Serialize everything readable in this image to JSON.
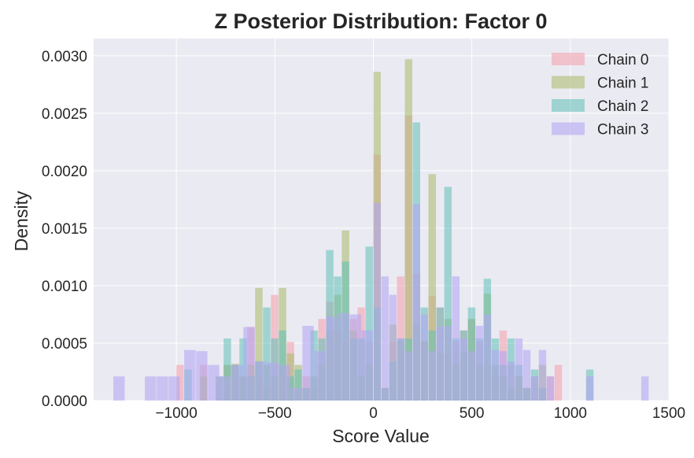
{
  "chart_data": {
    "type": "bar",
    "title": "Z Posterior Distribution: Factor 0",
    "xlabel": "Score Value",
    "ylabel": "Density",
    "xlim": [
      -1420,
      1500
    ],
    "ylim": [
      0,
      0.00315
    ],
    "xticks": [
      -1000,
      -500,
      0,
      500,
      1000,
      1500
    ],
    "xtick_labels": [
      "−1000",
      "−500",
      "0",
      "500",
      "1000",
      "1500"
    ],
    "yticks": [
      0,
      0.0005,
      0.001,
      0.0015,
      0.002,
      0.0025,
      0.003
    ],
    "ytick_labels": [
      "0.0000",
      "0.0005",
      "0.0010",
      "0.0015",
      "0.0020",
      "0.0025",
      "0.0030"
    ],
    "grid": true,
    "legend_position": "top-right",
    "series": [
      {
        "name": "Chain 0",
        "color": "#f4a3b0",
        "opacity": 0.6,
        "bins": [
          [
            -1000,
            -960,
            0.00031
          ],
          [
            -880,
            -840,
            0.00031
          ],
          [
            -800,
            -760,
            0.00021
          ],
          [
            -760,
            -720,
            0.00031
          ],
          [
            -720,
            -680,
            0.00031
          ],
          [
            -680,
            -640,
            0.00021
          ],
          [
            -640,
            -600,
            0.00064
          ],
          [
            -600,
            -560,
            0.00021
          ],
          [
            -560,
            -520,
            0.00011
          ],
          [
            -520,
            -480,
            0.00092
          ],
          [
            -480,
            -440,
            0.00031
          ],
          [
            -440,
            -400,
            0.00051
          ],
          [
            -400,
            -360,
            0.00011
          ],
          [
            -360,
            -320,
            0.00021
          ],
          [
            -320,
            -280,
            0.00011
          ],
          [
            -280,
            -240,
            0.00071
          ],
          [
            -240,
            -200,
            0.00086
          ],
          [
            -200,
            -160,
            0.00061
          ],
          [
            -160,
            -120,
            0.00051
          ],
          [
            -120,
            -80,
            0.00071
          ],
          [
            -80,
            -40,
            0.00081
          ],
          [
            -40,
            0,
            0.00051
          ],
          [
            0,
            40,
            0.00214
          ],
          [
            40,
            80,
            0.00011
          ],
          [
            80,
            120,
            0.00051
          ],
          [
            120,
            160,
            0.00108
          ],
          [
            160,
            200,
            0.00248
          ],
          [
            200,
            240,
            0.00111
          ],
          [
            240,
            280,
            0.00051
          ],
          [
            280,
            320,
            0.00091
          ],
          [
            320,
            360,
            0.00081
          ],
          [
            360,
            400,
            0.00041
          ],
          [
            400,
            440,
            0.00051
          ],
          [
            440,
            480,
            0.00061
          ],
          [
            480,
            520,
            0.00071
          ],
          [
            520,
            560,
            0.00051
          ],
          [
            560,
            600,
            0.00031
          ],
          [
            600,
            640,
            0.00021
          ],
          [
            640,
            680,
            0.00061
          ],
          [
            680,
            720,
            0.00031
          ],
          [
            720,
            760,
            0.00021
          ],
          [
            760,
            800,
            0.00011
          ],
          [
            800,
            840,
            0.00021
          ],
          [
            840,
            880,
            0.00011
          ],
          [
            880,
            920,
            0.00021
          ],
          [
            920,
            960,
            0.00031
          ]
        ]
      },
      {
        "name": "Chain 1",
        "color": "#aebd72",
        "opacity": 0.6,
        "bins": [
          [
            -880,
            -840,
            0.00021
          ],
          [
            -760,
            -720,
            0.00031
          ],
          [
            -720,
            -680,
            0.00032
          ],
          [
            -680,
            -640,
            0.00021
          ],
          [
            -640,
            -600,
            0.00031
          ],
          [
            -600,
            -560,
            0.00098
          ],
          [
            -560,
            -520,
            0.00031
          ],
          [
            -520,
            -480,
            0.00021
          ],
          [
            -480,
            -440,
            0.00098
          ],
          [
            -440,
            -400,
            0.00041
          ],
          [
            -400,
            -360,
            0.00031
          ],
          [
            -360,
            -320,
            0.00011
          ],
          [
            -320,
            -280,
            0.00021
          ],
          [
            -280,
            -240,
            0.00031
          ],
          [
            -240,
            -200,
            0.00061
          ],
          [
            -200,
            -160,
            0.00092
          ],
          [
            -160,
            -120,
            0.00148
          ],
          [
            -120,
            -80,
            0.00061
          ],
          [
            -80,
            -40,
            0.00021
          ],
          [
            -40,
            0,
            0.00031
          ],
          [
            0,
            40,
            0.00286
          ],
          [
            40,
            80,
            0.00011
          ],
          [
            80,
            120,
            0.00066
          ],
          [
            120,
            160,
            0.00052
          ],
          [
            160,
            200,
            0.00297
          ],
          [
            200,
            240,
            0.00066
          ],
          [
            240,
            280,
            0.00052
          ],
          [
            280,
            320,
            0.00197
          ],
          [
            320,
            360,
            0.00041
          ],
          [
            360,
            400,
            0.00071
          ],
          [
            400,
            440,
            0.00031
          ],
          [
            440,
            480,
            0.00042
          ],
          [
            480,
            520,
            0.00071
          ],
          [
            520,
            560,
            0.00031
          ],
          [
            560,
            600,
            0.00093
          ],
          [
            600,
            640,
            0.00031
          ],
          [
            640,
            680,
            0.00021
          ],
          [
            680,
            720,
            0.00011
          ],
          [
            720,
            760,
            0.00021
          ],
          [
            760,
            800,
            0.00011
          ],
          [
            840,
            880,
            0.00031
          ]
        ]
      },
      {
        "name": "Chain 2",
        "color": "#5ebfb8",
        "opacity": 0.55,
        "bins": [
          [
            -960,
            -920,
            0.00027
          ],
          [
            -800,
            -760,
            0.00021
          ],
          [
            -760,
            -720,
            0.00054
          ],
          [
            -720,
            -680,
            0.00031
          ],
          [
            -680,
            -640,
            0.00054
          ],
          [
            -640,
            -600,
            0.00021
          ],
          [
            -600,
            -560,
            0.00034
          ],
          [
            -560,
            -520,
            0.00081
          ],
          [
            -520,
            -480,
            0.00054
          ],
          [
            -480,
            -440,
            0.00061
          ],
          [
            -440,
            -400,
            0.00021
          ],
          [
            -400,
            -360,
            0.00027
          ],
          [
            -360,
            -320,
            0.00011
          ],
          [
            -320,
            -280,
            0.00061
          ],
          [
            -280,
            -240,
            0.00054
          ],
          [
            -240,
            -200,
            0.00131
          ],
          [
            -200,
            -160,
            0.00108
          ],
          [
            -160,
            -120,
            0.00121
          ],
          [
            -120,
            -80,
            0.00054
          ],
          [
            -80,
            -40,
            0.00054
          ],
          [
            -40,
            0,
            0.00134
          ],
          [
            0,
            40,
            0.00081
          ],
          [
            40,
            80,
            0.00011
          ],
          [
            80,
            120,
            0.00034
          ],
          [
            120,
            160,
            0.00054
          ],
          [
            160,
            200,
            0.00054
          ],
          [
            200,
            240,
            0.00242
          ],
          [
            240,
            280,
            0.00081
          ],
          [
            280,
            320,
            0.00061
          ],
          [
            320,
            360,
            0.00081
          ],
          [
            360,
            400,
            0.00186
          ],
          [
            400,
            440,
            0.00054
          ],
          [
            440,
            480,
            0.00061
          ],
          [
            480,
            520,
            0.00081
          ],
          [
            520,
            560,
            0.00054
          ],
          [
            560,
            600,
            0.00106
          ],
          [
            600,
            640,
            0.00054
          ],
          [
            640,
            680,
            0.00031
          ],
          [
            680,
            720,
            0.00054
          ],
          [
            720,
            760,
            0.00031
          ],
          [
            760,
            800,
            0.00011
          ],
          [
            800,
            840,
            0.00027
          ],
          [
            840,
            880,
            0.00011
          ],
          [
            1080,
            1120,
            0.00027
          ]
        ]
      },
      {
        "name": "Chain 3",
        "color": "#b3a6f2",
        "opacity": 0.6,
        "bins": [
          [
            -1320,
            -1260,
            0.00021
          ],
          [
            -1160,
            -1100,
            0.00021
          ],
          [
            -1100,
            -1040,
            0.00021
          ],
          [
            -1040,
            -980,
            0.00021
          ],
          [
            -960,
            -900,
            0.00044
          ],
          [
            -900,
            -840,
            0.00043
          ],
          [
            -840,
            -780,
            0.00031
          ],
          [
            -780,
            -720,
            0.00021
          ],
          [
            -720,
            -660,
            0.00031
          ],
          [
            -660,
            -600,
            0.00064
          ],
          [
            -600,
            -540,
            0.00034
          ],
          [
            -540,
            -480,
            0.00033
          ],
          [
            -480,
            -420,
            0.00031
          ],
          [
            -420,
            -360,
            0.00011
          ],
          [
            -360,
            -300,
            0.00065
          ],
          [
            -300,
            -240,
            0.00043
          ],
          [
            -240,
            -180,
            0.00073
          ],
          [
            -180,
            -120,
            0.00076
          ],
          [
            -120,
            -60,
            0.00075
          ],
          [
            -60,
            0,
            0.00061
          ],
          [
            0,
            40,
            0.00172
          ],
          [
            40,
            80,
            0.00108
          ],
          [
            80,
            120,
            0.00092
          ],
          [
            120,
            160,
            0.00054
          ],
          [
            160,
            200,
            0.00043
          ],
          [
            200,
            240,
            0.00171
          ],
          [
            240,
            280,
            0.00075
          ],
          [
            280,
            320,
            0.00043
          ],
          [
            320,
            360,
            0.00064
          ],
          [
            360,
            400,
            0.00065
          ],
          [
            400,
            440,
            0.00108
          ],
          [
            440,
            480,
            0.00054
          ],
          [
            480,
            520,
            0.00043
          ],
          [
            520,
            560,
            0.00065
          ],
          [
            560,
            600,
            0.00075
          ],
          [
            600,
            640,
            0.00044
          ],
          [
            640,
            680,
            0.00043
          ],
          [
            680,
            720,
            0.00034
          ],
          [
            720,
            760,
            0.00054
          ],
          [
            760,
            800,
            0.00044
          ],
          [
            800,
            840,
            0.00021
          ],
          [
            840,
            880,
            0.00044
          ],
          [
            880,
            920,
            0.00021
          ],
          [
            1080,
            1120,
            0.00021
          ],
          [
            1360,
            1400,
            0.00021
          ]
        ]
      }
    ]
  }
}
